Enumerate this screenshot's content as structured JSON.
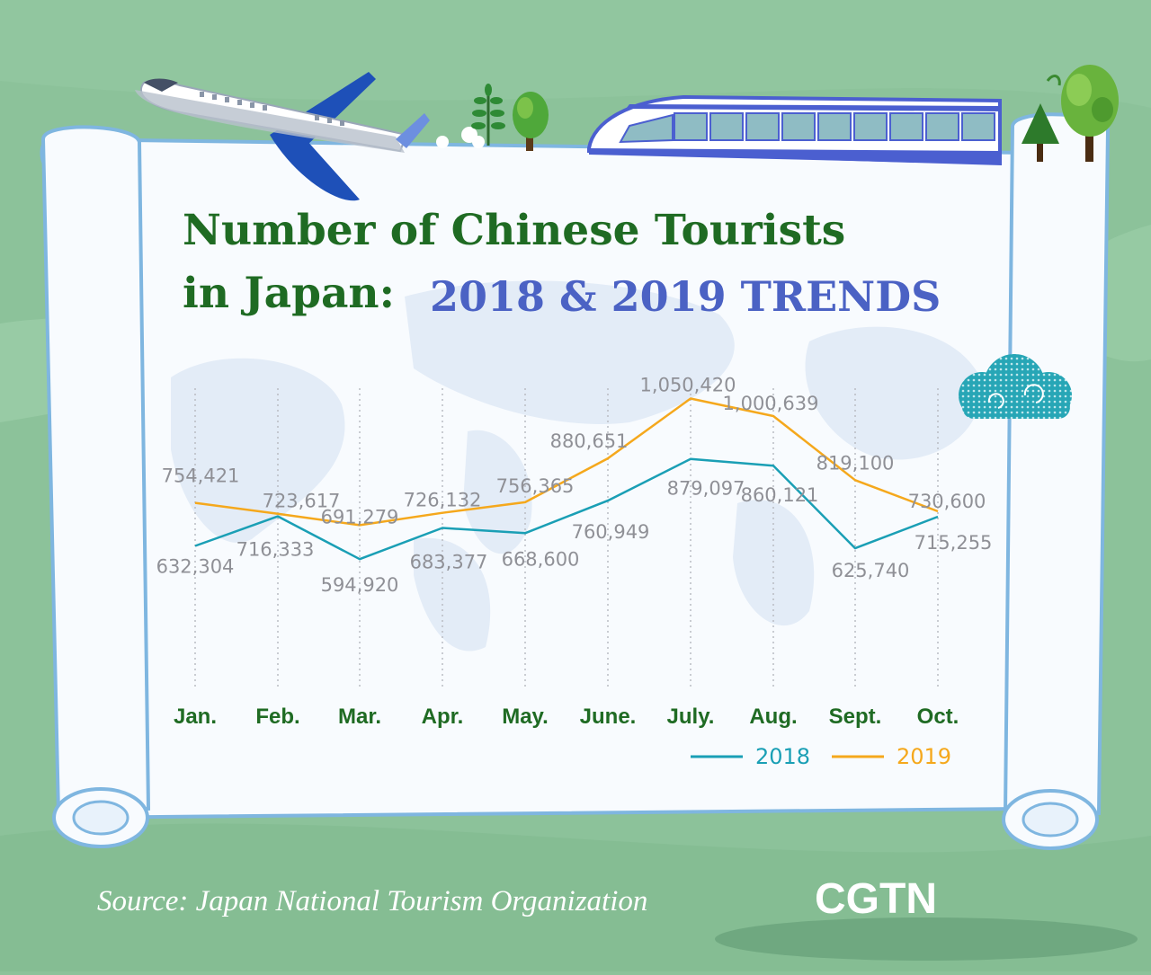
{
  "title": {
    "line1": "Number of Chinese Tourists",
    "line2_green": "in Japan:",
    "line2_blue": "2018 & 2019 TRENDS"
  },
  "source": "Source: Japan National Tourism Organization",
  "brand": "CGTN",
  "colors": {
    "background": "#8cc29a",
    "scroll": "#f8fbfe",
    "scroll_edge": "#7fb6e0",
    "series_2018": "#1a9fb5",
    "series_2019": "#f5a81c",
    "title_green": "#1f6b23",
    "title_blue": "#4b62c4",
    "label_gray": "#8f9096"
  },
  "icons": [
    "airplane-icon",
    "train-icon",
    "tree-icon",
    "cloud-icon"
  ],
  "chart_data": {
    "type": "line",
    "categories": [
      "Jan.",
      "Feb.",
      "Mar.",
      "Apr.",
      "May.",
      "June.",
      "July.",
      "Aug.",
      "Sept.",
      "Oct."
    ],
    "series": [
      {
        "name": "2018",
        "values": [
          632304,
          716333,
          594920,
          683377,
          668600,
          760949,
          879097,
          860121,
          625740,
          715255
        ],
        "labels": [
          "632,304",
          "716,333",
          "594,920",
          "683,377",
          "668,600",
          "760,949",
          "879,097",
          "860,121",
          "625,740",
          "715,255"
        ]
      },
      {
        "name": "2019",
        "values": [
          754421,
          723617,
          691279,
          726132,
          756365,
          880651,
          1050420,
          1000639,
          819100,
          730600
        ],
        "labels": [
          "754,421",
          "723,617",
          "691,279",
          "726,132",
          "756,365",
          "880,651",
          "1,050,420",
          "1,000,639",
          "819,100",
          "730,600"
        ]
      }
    ],
    "grid": "vertical dotted lines",
    "legend": "bottom-right"
  }
}
